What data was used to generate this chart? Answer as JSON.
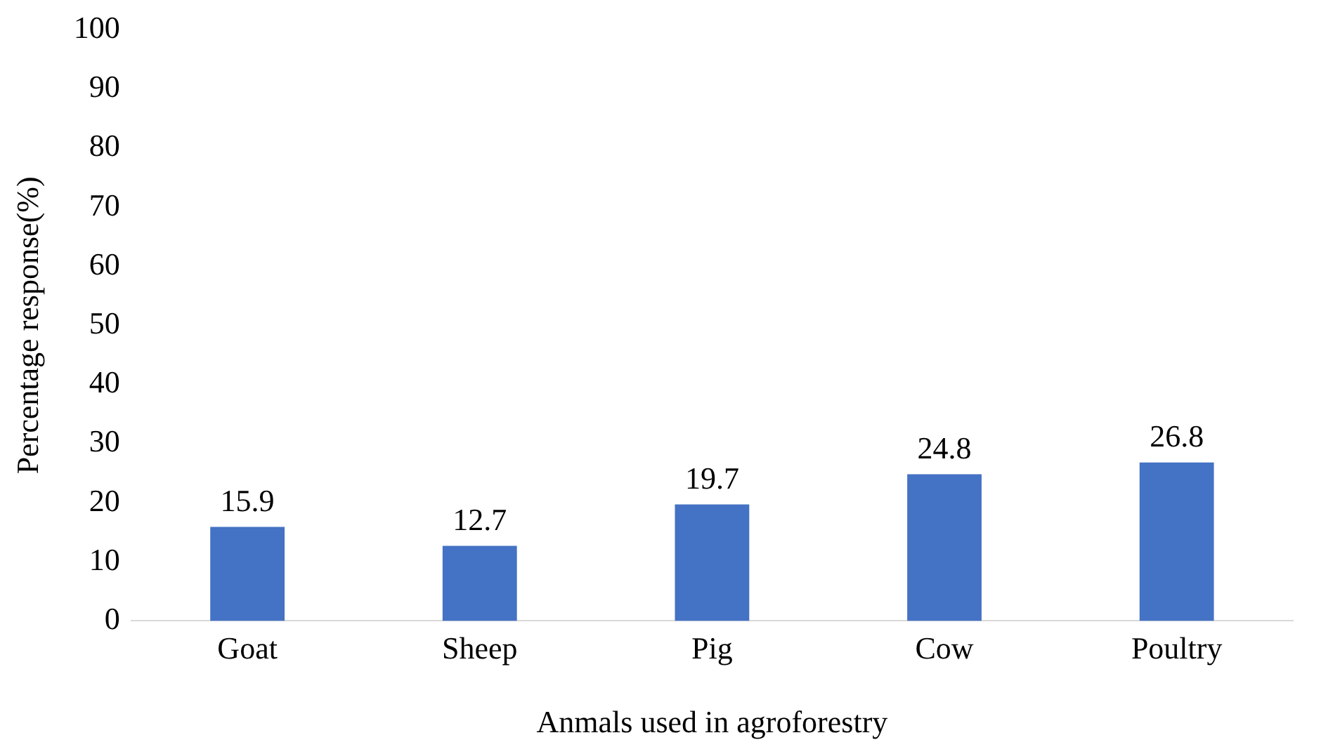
{
  "chart_data": {
    "type": "bar",
    "xlabel": "Anmals used in agroforestry",
    "ylabel": "Percentage response(%)",
    "categories": [
      "Goat",
      "Sheep",
      "Pig",
      "Cow",
      "Poultry"
    ],
    "values": [
      15.9,
      12.7,
      19.7,
      24.8,
      26.8
    ],
    "color": "#4472c4",
    "ylim": [
      0,
      100
    ],
    "yticks": [
      0,
      10,
      20,
      30,
      40,
      50,
      60,
      70,
      80,
      90,
      100
    ],
    "grid": false,
    "legend": false,
    "data_labels": true
  }
}
